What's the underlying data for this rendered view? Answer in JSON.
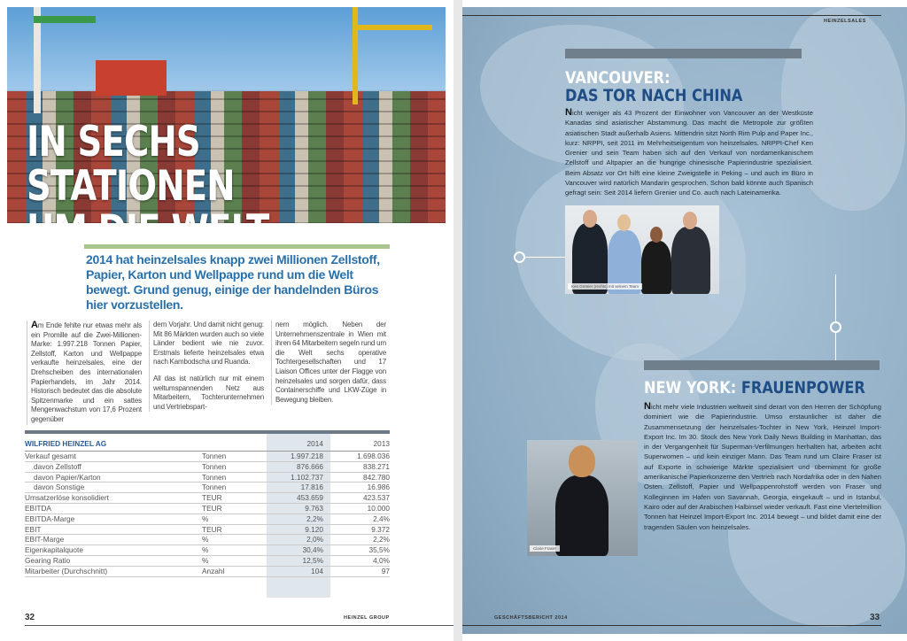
{
  "left_page": {
    "hero_title_lines": [
      "IN SECHS STATIONEN",
      "UM DIE WELT"
    ],
    "lead": "2014 hat heinzelsales knapp zwei Millionen Zellstoff, Papier, Karton und Wellpappe rund um die Welt bewegt. Grund genug, einige der handelnden Büros hier vorzustellen.",
    "columns": [
      {
        "drop": "A",
        "text": "m Ende fehlte nur etwas mehr als ein Promille auf die Zwei-Millionen-Marke: 1.997.218 Tonnen Papier, Zellstoff, Karton und Wellpappe verkaufte heinzelsales, eine der Drehscheiben des internationalen Papierhandels, im Jahr 2014. Historisch bedeutet das die absolute Spitzenmarke und ein sattes Mengenwachstum von 17,6 Prozent gegenüber"
      },
      {
        "text": "dem Vorjahr. Und damit nicht genug: Mit 86 Märkten wurden auch so viele Länder bedient wie nie zuvor. Erstmals lieferte heinzelsales etwa nach Kambodscha und Ruanda.",
        "text2": "All das ist natürlich nur mit einem weltumspannenden Netz aus Mitarbeitern, Tochterunternehmen und Vertriebspart-"
      },
      {
        "text": "nern möglich. Neben der Unternehmenszentrale in Wien mit ihren 64 Mitarbeitern segeln rund um die Welt sechs operative Tochtergesellschaften und 17 Liaison Offices unter der Flagge von heinzelsales und sorgen dafür, dass Containerschiffe und LKW-Züge in Bewegung bleiben."
      }
    ],
    "table": {
      "title": "WILFRIED HEINZEL AG",
      "years": [
        "2014",
        "2013"
      ],
      "rows": [
        {
          "label": "Verkauf gesamt",
          "unit": "Tonnen",
          "v2014": "1.997.218",
          "v2013": "1.698.036"
        },
        {
          "label": "davon Zellstoff",
          "unit": "Tonnen",
          "v2014": "876.666",
          "v2013": "838.271",
          "indent": true
        },
        {
          "label": "davon Papier/Karton",
          "unit": "Tonnen",
          "v2014": "1.102.737",
          "v2013": "842.780",
          "indent": true
        },
        {
          "label": "davon Sonstige",
          "unit": "Tonnen",
          "v2014": "17.816",
          "v2013": "16.986",
          "indent": true
        },
        {
          "label": "Umsatzerlöse konsolidiert",
          "unit": "TEUR",
          "v2014": "453.659",
          "v2013": "423.537"
        },
        {
          "label": "EBITDA",
          "unit": "TEUR",
          "v2014": "9.763",
          "v2013": "10.000"
        },
        {
          "label": "EBITDA-Marge",
          "unit": "%",
          "v2014": "2,2%",
          "v2013": "2,4%"
        },
        {
          "label": "EBIT",
          "unit": "TEUR",
          "v2014": "9.120",
          "v2013": "9.372"
        },
        {
          "label": "EBIT-Marge",
          "unit": "%",
          "v2014": "2,0%",
          "v2013": "2,2%"
        },
        {
          "label": "Eigenkapitalquote",
          "unit": "%",
          "v2014": "30,4%",
          "v2013": "35,5%"
        },
        {
          "label": "Gearing Ratio",
          "unit": "%",
          "v2014": "12,5%",
          "v2013": "4,0%"
        },
        {
          "label": "Mitarbeiter (Durchschnitt)",
          "unit": "Anzahl",
          "v2014": "104",
          "v2013": "97"
        }
      ]
    },
    "page_number": "32",
    "footer_label": "HEINZEL GROUP"
  },
  "right_page": {
    "header_label": "HEINZELSALES",
    "vancouver": {
      "title_line1": "VANCOUVER:",
      "title_line2": "DAS TOR NACH CHINA",
      "drop": "N",
      "text": "icht weniger als 43 Prozent der Einwohner von Vancouver an der Westküste Kanadas sind asiatischer Abstammung. Das macht die Metropole zur größten asiatischen Stadt außerhalb Asiens. Mittendrin sitzt North Rim Pulp and Paper Inc., kurz: NRPPI, seit 2011 im Mehrheitseigentum von heinzelsales. NRPPI-Chef Ken Grenier und sein Team haben sich auf den Verkauf von nordamerikanischem Zellstoff und Altpapier an die hungrige chinesische Papierindustrie spezialisiert. Beim Absatz vor Ort hilft eine kleine Zweigstelle in Peking – und auch im Büro in Vancouver wird natürlich Mandarin gesprochen. Schon bald könnte auch Spanisch gefragt sein: Seit 2014 liefern Grenier und Co. auch nach Lateinamerika.",
      "photo_caption": "Ken Grenier (rechts) mit seinem Team"
    },
    "newyork": {
      "title_part1": "NEW YORK:",
      "title_part2": "FRAUENPOWER",
      "drop": "N",
      "text": "icht mehr viele Industrien weltweit sind derart von den Herren der Schöpfung dominiert wie die Papierindustrie. Umso erstaunlicher ist daher die Zusammensetzung der heinzelsales-Tochter in New York, Heinzel Import-Export Inc. Im 30. Stock des New York Daily News Building in Manhattan, das in der Vergangenheit für Superman-Verfilmungen herhalten hat, arbeiten acht Superwomen – und kein einziger Mann. Das Team rund um Claire Fraser ist auf Exporte in schwierige Märkte spezialisiert und übernimmt für große amerikanische Papierkonzerne den Vertrieb nach Nordafrika oder in den Nahen Osten. Zellstoff, Papier und Wellpappenrohstoff werden von Fraser und Kolleginnen im Hafen von Savannah, Georgia, eingekauft – und in Istanbul, Kairo oder auf der Arabischen Halbinsel wieder verkauft. Fast eine Viertelmillion Tonnen hat Heinzel Import-Export Inc. 2014 bewegt – und bildet damit eine der tragenden Säulen von heinzelsales.",
      "photo_caption": "Claire Fraser"
    },
    "footer_label": "GESCHÄFTSBERICHT 2014",
    "page_number": "33"
  },
  "colors": {
    "headline_blue": "#2a70ab",
    "title_dark_blue": "#1f4e86",
    "accent_green": "#a8c58e",
    "map_blue": "#9ab6cb"
  }
}
